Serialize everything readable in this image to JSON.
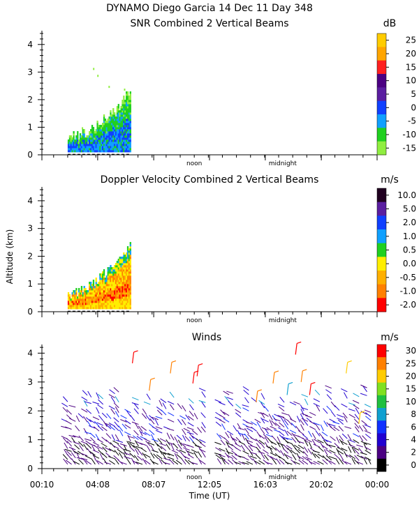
{
  "figure": {
    "title_line1": "DYNAMO Diego Garcia  14 Dec 11 Day 348",
    "ylabel": "Altitude (km)",
    "xlabel": "Time (UT)",
    "marker_noon": "noon",
    "marker_midnight": "midnight"
  },
  "chart_data": [
    {
      "type": "heatmap",
      "title": "SNR Combined 2 Vertical Beams",
      "ylabel": "Altitude (km)",
      "ylim": [
        0,
        4.5
      ],
      "yticks": [
        "0",
        "1",
        "2",
        "3",
        "4"
      ],
      "time_range_hours": [
        0.167,
        24.0
      ],
      "colorbar": {
        "unit": "dB",
        "labels": [
          "25",
          "20",
          "15",
          "10",
          "5",
          "0",
          "-5",
          "-10",
          "-15"
        ],
        "colors": [
          "#ffcc00",
          "#ffa500",
          "#ff2020",
          "#4b0082",
          "#5a1ea0",
          "#1040ff",
          "#10a0ff",
          "#20d020",
          "#90ee40"
        ]
      },
      "coverage": {
        "start_hour": 2.0,
        "end_hour": 6.5,
        "top_km": [
          0.55,
          0.7,
          0.9,
          1.3,
          1.6,
          2.4
        ]
      }
    },
    {
      "type": "heatmap",
      "title": "Doppler Velocity Combined 2 Vertical Beams",
      "ylabel": "Altitude (km)",
      "ylim": [
        0,
        4.5
      ],
      "yticks": [
        "0",
        "1",
        "2",
        "3",
        "4"
      ],
      "time_range_hours": [
        0.167,
        24.0
      ],
      "colorbar": {
        "unit": "m/s",
        "labels": [
          "10.0",
          "5.0",
          "2.0",
          "1.0",
          "0.5",
          "0.0",
          "-0.5",
          "-1.0",
          "-2.0"
        ],
        "colors": [
          "#200020",
          "#5a1ea0",
          "#1040ff",
          "#10a0ff",
          "#20d020",
          "#ffee00",
          "#ffb000",
          "#ff8000",
          "#ff0000"
        ]
      },
      "coverage": {
        "start_hour": 2.0,
        "end_hour": 6.5,
        "top_km": [
          0.55,
          0.7,
          1.0,
          1.4,
          1.8,
          2.3
        ]
      }
    },
    {
      "type": "scatter",
      "title": "Winds",
      "ylabel": "Altitude (km)",
      "xlabel": "Time (UT)",
      "ylim": [
        0,
        4.3
      ],
      "yticks": [
        "0",
        "1",
        "2",
        "3",
        "4"
      ],
      "xticks": [
        "00:10",
        "04:08",
        "08:07",
        "12:05",
        "16:03",
        "20:02",
        "00:00"
      ],
      "xtick_hours": [
        0.167,
        4.133,
        8.117,
        12.083,
        16.05,
        20.033,
        24.0
      ],
      "colorbar": {
        "unit": "m/s",
        "labels": [
          "30",
          "25",
          "20",
          "15",
          "10",
          "8",
          "6",
          "4",
          "2",
          "0"
        ],
        "colors": [
          "#ff0000",
          "#ff8000",
          "#ffcc00",
          "#80e020",
          "#20c040",
          "#10a0d0",
          "#1030ff",
          "#2000d0",
          "#4b0082",
          "#000000"
        ]
      },
      "coverage": {
        "start_hour": 2.0,
        "end_hour": 23.8,
        "gap_hours": [
          11.8,
          12.9
        ]
      }
    }
  ]
}
